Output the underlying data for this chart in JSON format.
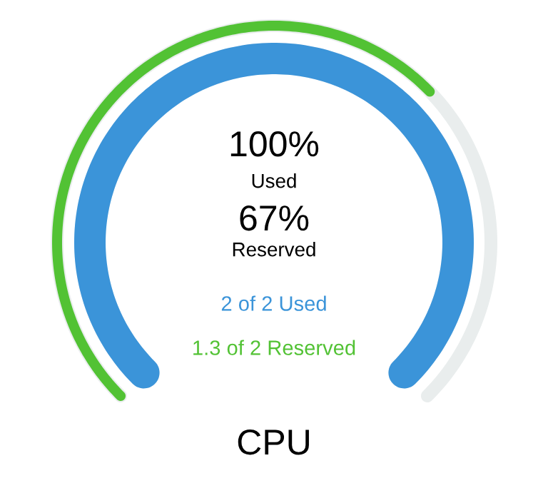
{
  "chart_data": {
    "type": "other",
    "title": "CPU",
    "colors": [
      "#3b94d9",
      "#52c234"
    ],
    "series": [
      {
        "name": "Used",
        "values": [
          100
        ],
        "value_labels": [
          "100%"
        ]
      },
      {
        "name": "Reserved",
        "values": [
          67
        ],
        "value_labels": [
          "67%"
        ]
      }
    ],
    "annotations": [
      "2 of 2 Used",
      "1.3 of 2 Reserved"
    ]
  }
}
